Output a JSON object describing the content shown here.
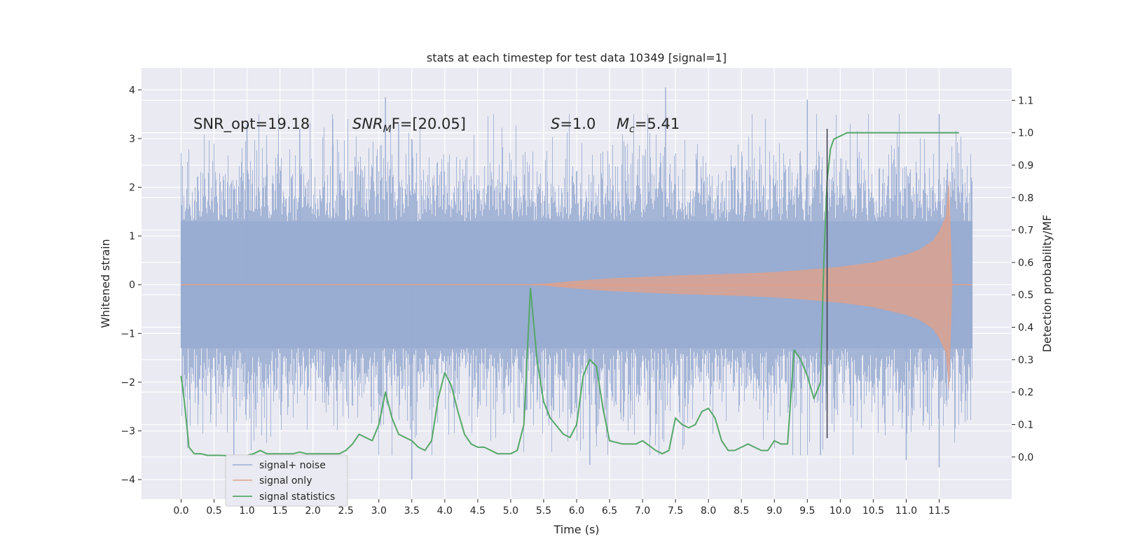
{
  "chart_data": {
    "type": "line",
    "title": "stats at each timestep for test data 10349 [signal=1]",
    "xlabel": "Time (s)",
    "ylabel": "Whitened strain",
    "y2label": "Detection probability/MF",
    "xlim": [
      -0.6,
      12.6
    ],
    "ylim": [
      -4.4,
      4.45
    ],
    "y2lim": [
      -0.13,
      1.2
    ],
    "xticks": [
      0.0,
      0.5,
      1.0,
      1.5,
      2.0,
      2.5,
      3.0,
      3.5,
      4.0,
      4.5,
      5.0,
      5.5,
      6.0,
      6.5,
      7.0,
      7.5,
      8.0,
      8.5,
      9.0,
      9.5,
      10.0,
      10.5,
      11.0,
      11.5
    ],
    "xtick_labels": [
      "0.0",
      "0.5",
      "1.0",
      "1.5",
      "2.0",
      "2.5",
      "3.0",
      "3.5",
      "4.0",
      "4.5",
      "5.0",
      "5.5",
      "6.0",
      "6.5",
      "7.0",
      "7.5",
      "8.0",
      "8.5",
      "9.0",
      "9.5",
      "10.0",
      "10.5",
      "11.0",
      "11.5"
    ],
    "yticks": [
      4,
      3,
      2,
      1,
      0,
      -1,
      -2,
      -3,
      -4
    ],
    "ytick_labels": [
      "4",
      "3",
      "2",
      "1",
      "0",
      "−1",
      "−2",
      "−3",
      "−4"
    ],
    "y2ticks": [
      1.1,
      1.0,
      0.9,
      0.8,
      0.7,
      0.6,
      0.5,
      0.4,
      0.3,
      0.2,
      0.1,
      0.0
    ],
    "y2tick_labels": [
      "1.1",
      "1.0",
      "0.9",
      "0.8",
      "0.7",
      "0.6",
      "0.5",
      "0.4",
      "0.3",
      "0.2",
      "0.1",
      "0.0"
    ],
    "grid": true,
    "legend_position": "lower-left",
    "colors": {
      "background": "#eaeaf2",
      "noise": "#99acd1",
      "signal": "#e0a189",
      "stats": "#55a868",
      "vline": "#3d3d4a",
      "grid": "#ffffff"
    },
    "annotations": {
      "snr_opt": "SNR_opt=19.18",
      "snr_mf_base": "SNR",
      "snr_mf_sub": "M",
      "snr_mf_rest": "F=[20.05]",
      "s_italic": "S",
      "s_rest": "=1.0",
      "mc_base": "M",
      "mc_sub": "c",
      "mc_rest": "=5.41"
    },
    "vertical_line": {
      "x": 9.8,
      "y_from": -3.15,
      "y_to": 3.2
    },
    "series": [
      {
        "name": "signal+ noise",
        "kind": "noise",
        "x_range": [
          0.0,
          12.0
        ],
        "core_band": [
          -1.3,
          1.3
        ],
        "typical_spike_max": 3.5,
        "peak_spikes": [
          {
            "x": 1.0,
            "y": 3.3
          },
          {
            "x": 1.8,
            "y": 3.2
          },
          {
            "x": 2.3,
            "y": 3.4
          },
          {
            "x": 3.1,
            "y": 3.85
          },
          {
            "x": 3.3,
            "y": 3.3
          },
          {
            "x": 7.35,
            "y": 4.05
          },
          {
            "x": 9.5,
            "y": 3.8
          },
          {
            "x": 11.5,
            "y": 3.5
          },
          {
            "x": 0.8,
            "y": -3.7
          },
          {
            "x": 3.5,
            "y": -4.0
          },
          {
            "x": 6.2,
            "y": -3.7
          },
          {
            "x": 9.7,
            "y": -3.5
          },
          {
            "x": 11.0,
            "y": -3.6
          },
          {
            "x": 11.5,
            "y": -3.75
          }
        ]
      },
      {
        "name": "signal only",
        "kind": "chirp",
        "envelope_x": [
          0.0,
          5.0,
          5.5,
          6.0,
          6.5,
          7.0,
          7.5,
          8.0,
          8.5,
          9.0,
          9.5,
          10.0,
          10.5,
          11.0,
          11.2,
          11.4,
          11.5,
          11.6,
          11.65,
          11.7,
          12.0
        ],
        "envelope_y": [
          0.0,
          0.0,
          0.02,
          0.08,
          0.13,
          0.16,
          0.19,
          0.21,
          0.23,
          0.26,
          0.31,
          0.37,
          0.46,
          0.62,
          0.72,
          0.9,
          1.1,
          1.4,
          2.2,
          0.0,
          0.0
        ]
      },
      {
        "name": "signal statistics",
        "kind": "line",
        "axis": "right",
        "x": [
          0.0,
          0.05,
          0.12,
          0.2,
          0.3,
          0.4,
          0.5,
          0.6,
          0.8,
          1.0,
          1.1,
          1.2,
          1.3,
          1.4,
          1.5,
          1.6,
          1.7,
          1.8,
          1.9,
          2.0,
          2.2,
          2.4,
          2.5,
          2.6,
          2.7,
          2.8,
          2.9,
          3.0,
          3.1,
          3.2,
          3.3,
          3.4,
          3.5,
          3.6,
          3.7,
          3.8,
          3.9,
          4.0,
          4.1,
          4.2,
          4.3,
          4.4,
          4.5,
          4.6,
          4.7,
          4.8,
          5.0,
          5.1,
          5.2,
          5.3,
          5.4,
          5.5,
          5.6,
          5.8,
          5.9,
          6.0,
          6.1,
          6.2,
          6.3,
          6.4,
          6.5,
          6.7,
          6.9,
          7.0,
          7.2,
          7.3,
          7.4,
          7.5,
          7.6,
          7.7,
          7.8,
          7.9,
          8.0,
          8.1,
          8.2,
          8.3,
          8.4,
          8.5,
          8.6,
          8.7,
          8.8,
          8.9,
          9.0,
          9.1,
          9.2,
          9.3,
          9.4,
          9.5,
          9.6,
          9.7,
          9.75,
          9.8,
          9.85,
          9.9,
          10.0,
          10.1,
          10.2,
          10.5,
          11.0,
          11.5,
          11.8
        ],
        "y": [
          0.25,
          0.17,
          0.03,
          0.01,
          0.01,
          0.005,
          0.005,
          0.005,
          0.003,
          0.005,
          0.01,
          0.02,
          0.01,
          0.01,
          0.01,
          0.01,
          0.01,
          0.015,
          0.01,
          0.01,
          0.01,
          0.01,
          0.02,
          0.04,
          0.07,
          0.06,
          0.05,
          0.1,
          0.2,
          0.12,
          0.07,
          0.06,
          0.05,
          0.03,
          0.02,
          0.05,
          0.18,
          0.26,
          0.22,
          0.14,
          0.07,
          0.04,
          0.03,
          0.03,
          0.02,
          0.01,
          0.01,
          0.02,
          0.1,
          0.52,
          0.3,
          0.17,
          0.12,
          0.07,
          0.06,
          0.1,
          0.25,
          0.3,
          0.28,
          0.15,
          0.05,
          0.04,
          0.04,
          0.05,
          0.02,
          0.01,
          0.02,
          0.12,
          0.1,
          0.09,
          0.1,
          0.14,
          0.15,
          0.12,
          0.05,
          0.02,
          0.02,
          0.03,
          0.04,
          0.03,
          0.02,
          0.02,
          0.05,
          0.04,
          0.04,
          0.33,
          0.3,
          0.25,
          0.18,
          0.23,
          0.6,
          0.85,
          0.95,
          0.98,
          0.99,
          1.0,
          1.0,
          1.0,
          1.0,
          1.0,
          1.0
        ]
      }
    ]
  }
}
